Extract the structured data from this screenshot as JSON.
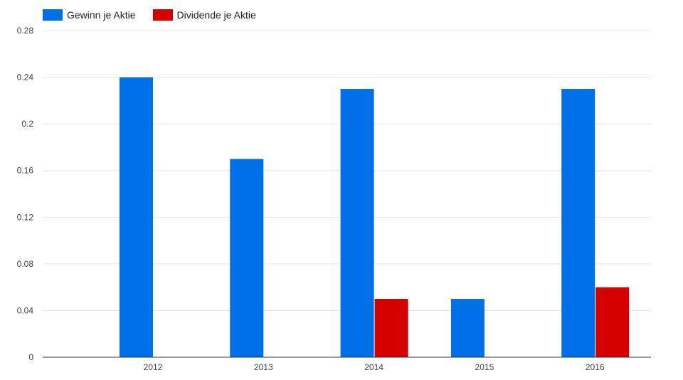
{
  "legend": {
    "items": [
      {
        "label": "Gewinn je Aktie",
        "color": "#0070e9"
      },
      {
        "label": "Dividende je Aktie",
        "color": "#d40000"
      }
    ]
  },
  "chart_data": {
    "type": "bar",
    "title": "",
    "xlabel": "",
    "ylabel": "",
    "categories": [
      "2012",
      "2013",
      "2014",
      "2015",
      "2016"
    ],
    "series": [
      {
        "name": "Gewinn je Aktie",
        "color": "#0070e9",
        "values": [
          0.24,
          0.17,
          0.23,
          0.05,
          0.23
        ]
      },
      {
        "name": "Dividende je Aktie",
        "color": "#d40000",
        "values": [
          0,
          0,
          0.05,
          0,
          0.06
        ]
      }
    ],
    "ylim": [
      0,
      0.28
    ],
    "yticks": [
      "0",
      "0.04",
      "0.08",
      "0.12",
      "0.16",
      "0.2",
      "0.24",
      "0.28"
    ],
    "grid": true,
    "legend_position": "top-left"
  }
}
